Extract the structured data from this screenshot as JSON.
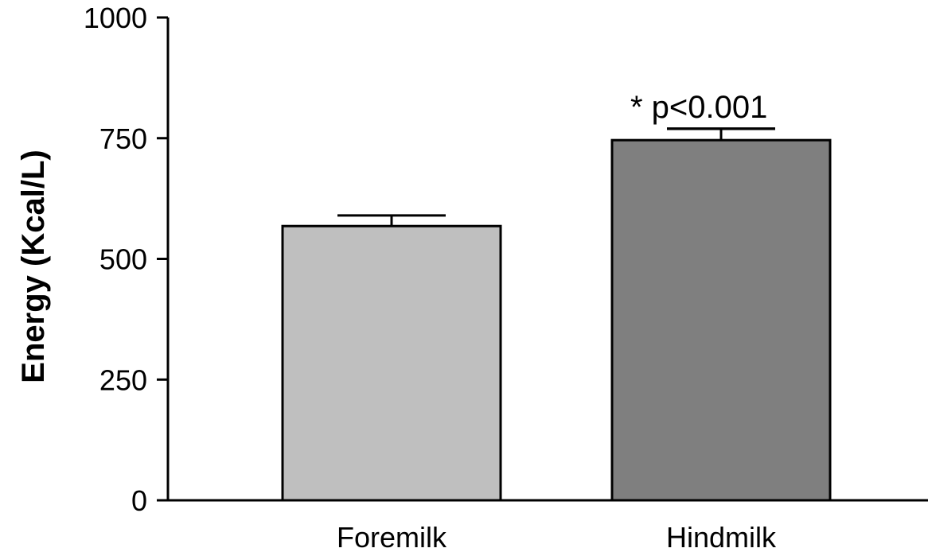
{
  "chart_data": {
    "type": "bar",
    "title": "",
    "xlabel": "",
    "ylabel": "Energy (Kcal/L)",
    "categories": [
      "Foremilk",
      "Hindmilk"
    ],
    "values": [
      568,
      746
    ],
    "error": [
      22,
      24
    ],
    "colors": [
      "#bfbfbf",
      "#7f7f7f"
    ],
    "ylim": [
      0,
      1000
    ],
    "yticks": [
      0,
      250,
      500,
      750,
      1000
    ],
    "ytick_labels": [
      "0",
      "250",
      "500",
      "750",
      "1000"
    ],
    "grid": false,
    "legend": "none",
    "annotation": "* p<0.001"
  }
}
